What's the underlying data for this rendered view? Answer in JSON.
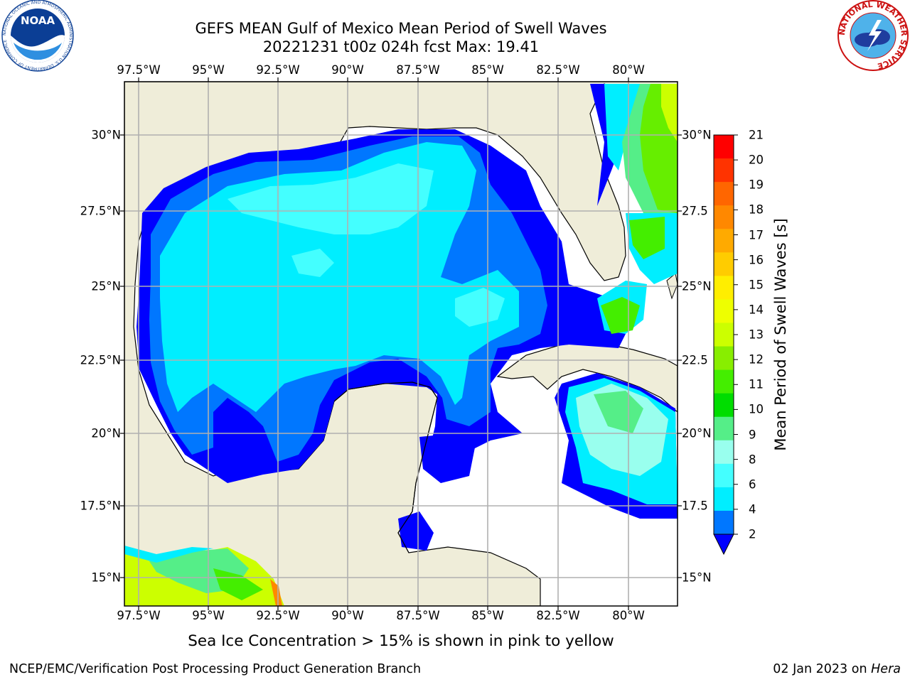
{
  "header": {
    "title": "GEFS MEAN Gulf of Mexico Mean Period of Swell Waves",
    "subtitle": "20221231 t00z 024h fcst   Max: 19.41"
  },
  "map": {
    "lon_ticks": [
      "97.5°W",
      "95°W",
      "92.5°W",
      "90°W",
      "87.5°W",
      "85°W",
      "82.5°W",
      "80°W"
    ],
    "lat_ticks_left": [
      "30°N",
      "27.5°N",
      "25°N",
      "22.5°N",
      "20°N",
      "17.5°N",
      "15°N"
    ],
    "lat_ticks_right": [
      "30°N",
      "27.5",
      "25°N",
      "22.5",
      "20°N",
      "17.5",
      "15°N"
    ],
    "land_color": "#efedd9",
    "grid_color": "#b0b0b0"
  },
  "colorbar": {
    "label": "Mean Period of Swell Waves [s]",
    "ticks": [
      "21",
      "20",
      "19",
      "18",
      "17",
      "16",
      "15",
      "14",
      "13",
      "12",
      "11",
      "10",
      "9",
      "8",
      "6",
      "4",
      "2"
    ],
    "colors": [
      "#ff0000",
      "#ff3300",
      "#ff6600",
      "#ff8800",
      "#ffaa00",
      "#ffcc00",
      "#ffee00",
      "#eeff00",
      "#ccff00",
      "#88ee00",
      "#44ee00",
      "#00dd00",
      "#55ee88",
      "#99ffee",
      "#44ffff",
      "#00eeff",
      "#0077ff"
    ],
    "extend_color": "#0000ff"
  },
  "footnote": "Sea Ice Concentration > 15% is shown in pink to yellow",
  "credits": {
    "left": "NCEP/EMC/Verification Post Processing Product Generation Branch",
    "right_date": "02 Jan 2023 on",
    "right_host": "Hera"
  },
  "logos": {
    "noaa": "NOAA",
    "nws_text": "NATIONAL WEATHER SERVICE",
    "noaa_ring_text": "NATIONAL OCEANIC AND ATMOSPHERIC ADMINISTRATION U.S. DEPARTMENT OF COMMERCE"
  }
}
